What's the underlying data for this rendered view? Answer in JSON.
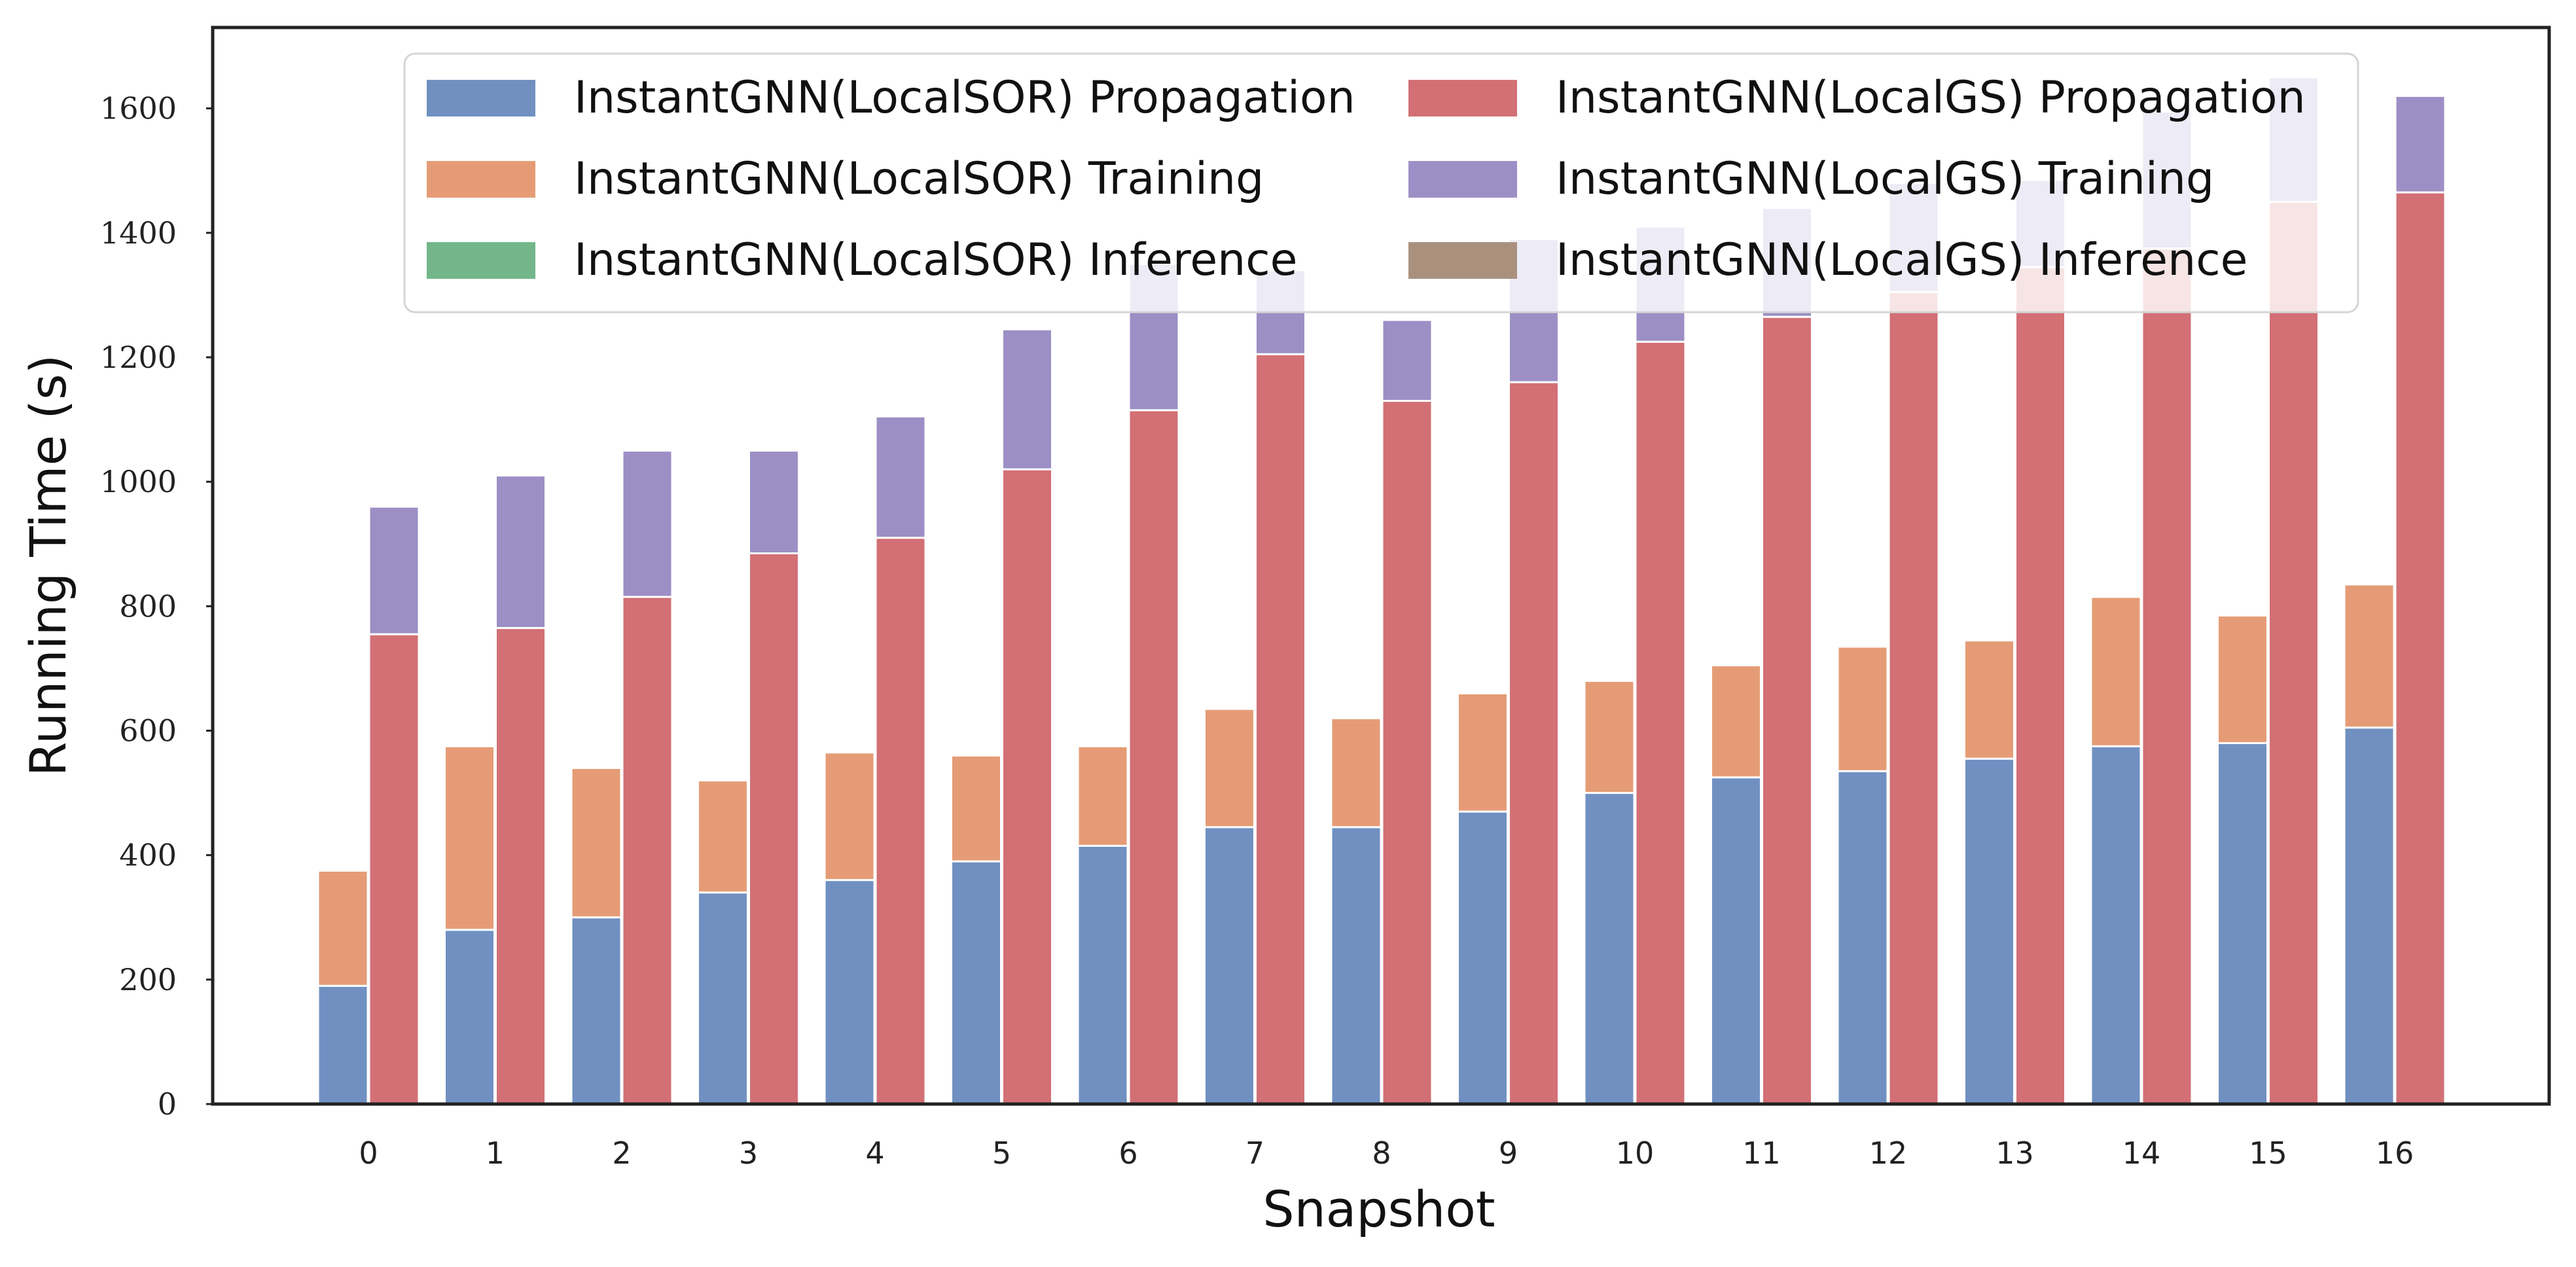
{
  "chart_data": {
    "type": "bar",
    "stacked": true,
    "grouped": true,
    "title": "",
    "xlabel": "Snapshot",
    "ylabel": "Running Time (s)",
    "categories": [
      "0",
      "1",
      "2",
      "3",
      "4",
      "5",
      "6",
      "7",
      "8",
      "9",
      "10",
      "11",
      "12",
      "13",
      "14",
      "15",
      "16"
    ],
    "yticks": [
      "0",
      "200",
      "400",
      "600",
      "800",
      "1000",
      "1200",
      "1400",
      "1600"
    ],
    "ylim": [
      0,
      1730
    ],
    "grid": false,
    "legend_position": "top",
    "groups": [
      {
        "name": "InstantGNN(LocalSOR)",
        "series": [
          {
            "name": "InstantGNN(LocalSOR) Propagation",
            "color": "#7090c1",
            "values": [
              190,
              280,
              300,
              340,
              360,
              390,
              415,
              445,
              445,
              470,
              500,
              525,
              535,
              555,
              575,
              580,
              605
            ]
          },
          {
            "name": "InstantGNN(LocalSOR) Training",
            "color": "#e59c76",
            "values": [
              185,
              295,
              240,
              180,
              205,
              170,
              160,
              190,
              175,
              190,
              180,
              180,
              200,
              190,
              240,
              205,
              230
            ]
          },
          {
            "name": "InstantGNN(LocalSOR) Inference",
            "color": "#72b68a",
            "values": [
              0,
              0,
              0,
              0,
              0,
              0,
              0,
              0,
              0,
              0,
              0,
              0,
              0,
              0,
              0,
              0,
              0
            ]
          }
        ]
      },
      {
        "name": "InstantGNN(LocalGS)",
        "series": [
          {
            "name": "InstantGNN(LocalGS) Propagation",
            "color": "#d27075",
            "values": [
              755,
              765,
              815,
              885,
              910,
              1020,
              1115,
              1205,
              1130,
              1160,
              1225,
              1265,
              1305,
              1345,
              1375,
              1450,
              1465
            ]
          },
          {
            "name": "InstantGNN(LocalGS) Training",
            "color": "#9c8fc5",
            "values": [
              205,
              245,
              235,
              165,
              195,
              225,
              235,
              135,
              130,
              230,
              185,
              175,
              175,
              140,
              220,
              200,
              155
            ]
          },
          {
            "name": "InstantGNN(LocalGS) Inference",
            "color": "#a9917e",
            "values": [
              0,
              0,
              0,
              0,
              0,
              0,
              0,
              0,
              0,
              0,
              0,
              0,
              0,
              0,
              0,
              0,
              0
            ]
          }
        ]
      }
    ]
  }
}
